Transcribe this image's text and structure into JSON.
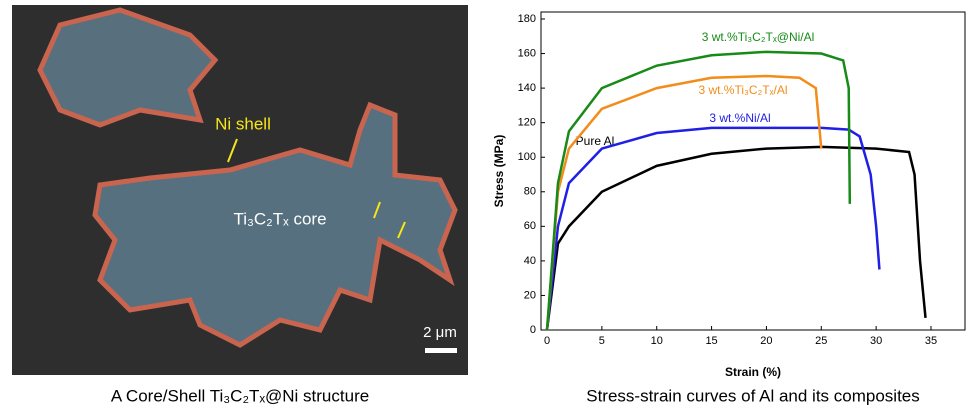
{
  "image": {
    "labels": {
      "shell": "Ni shell",
      "core": "Ti₃C₂Tₓ core",
      "scale": "2 μm"
    },
    "caption": "A Core/Shell Ti₃C₂Tₓ@Ni structure"
  },
  "chart_data": {
    "type": "line",
    "caption": "Stress-strain curves of Al and its composites",
    "x_label": "Strain (%)",
    "y_label": "Stress (MPa)",
    "xlim": [
      0,
      35
    ],
    "xticks": [
      0,
      5,
      10,
      15,
      20,
      25,
      30,
      35
    ],
    "ylim": [
      0,
      180
    ],
    "yticks": [
      0,
      20,
      40,
      60,
      80,
      100,
      120,
      140,
      160,
      180
    ],
    "series": [
      {
        "name": "Pure Al",
        "color": "#000000",
        "x": [
          0,
          1,
          2,
          5,
          10,
          15,
          20,
          25,
          30,
          33,
          33.5,
          34,
          34.5
        ],
        "values": [
          0,
          50,
          60,
          80,
          95,
          102,
          105,
          106,
          105,
          103,
          90,
          40,
          7
        ]
      },
      {
        "name": "3 wt.%Ni/Al",
        "color": "#1f1fe6",
        "x": [
          0,
          1,
          2,
          5,
          10,
          15,
          20,
          25,
          27.5,
          28.5,
          29.5,
          30,
          30.3
        ],
        "values": [
          0,
          60,
          85,
          105,
          114,
          117,
          117,
          117,
          116,
          112,
          90,
          60,
          35
        ]
      },
      {
        "name": "3 wt.%Ti₃C₂Tₓ/Al",
        "color": "#f28c1a",
        "x": [
          0,
          1,
          2,
          5,
          10,
          15,
          20,
          23,
          24.5,
          25
        ],
        "values": [
          0,
          80,
          105,
          128,
          140,
          146,
          147,
          146,
          140,
          105
        ]
      },
      {
        "name": "3 wt.%Ti₃C₂Tₓ@Ni/Al",
        "color": "#178a17",
        "x": [
          0,
          1,
          2,
          5,
          10,
          15,
          20,
          25,
          27,
          27.5,
          27.6
        ],
        "values": [
          0,
          85,
          115,
          140,
          153,
          159,
          161,
          160,
          156,
          140,
          73
        ]
      }
    ]
  }
}
